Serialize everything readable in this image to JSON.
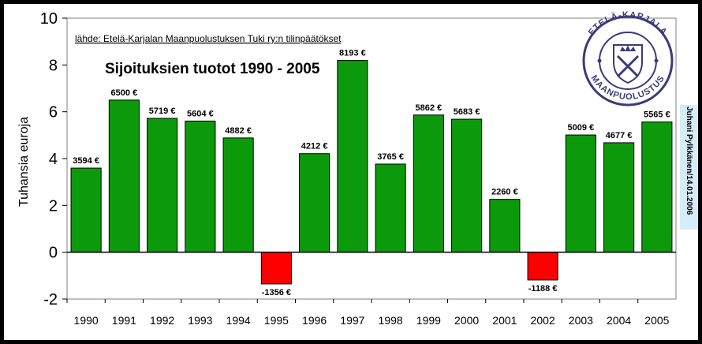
{
  "chart_data": {
    "type": "bar",
    "title": "Sijoituksien tuotot 1990 - 2005",
    "source": "lähde: Etelä-Karjalan Maanpuolustuksen Tuki ry:n tilinpäätökset",
    "author": "Juhani Pylkkänen/14.01.2006",
    "xlabel": "",
    "ylabel": "Tuhansia euroja",
    "ylim": [
      -2,
      10
    ],
    "yticks": [
      -2,
      0,
      2,
      4,
      6,
      8,
      10
    ],
    "grid": false,
    "categories": [
      "1990",
      "1991",
      "1992",
      "1993",
      "1994",
      "1995",
      "1996",
      "1997",
      "1998",
      "1999",
      "2000",
      "2001",
      "2002",
      "2003",
      "2004",
      "2005"
    ],
    "values": [
      3.594,
      6.5,
      5.719,
      5.604,
      4.882,
      -1.356,
      4.212,
      8.193,
      3.765,
      5.862,
      5.683,
      2.26,
      -1.188,
      5.009,
      4.677,
      5.565
    ],
    "data_labels": [
      "3594 €",
      "6500 €",
      "5719 €",
      "5604 €",
      "4882 €",
      "-1356 €",
      "4212 €",
      "8193 €",
      "3765 €",
      "5862 €",
      "5683 €",
      "2260 €",
      "-1188 €",
      "5009 €",
      "4677 €",
      "5565 €"
    ],
    "colors": {
      "positive": "#0c9a0c",
      "negative": "#ff0000",
      "plot_background": "#ffffff",
      "side_band": "#d6ecf8"
    }
  },
  "logo": {
    "text_top": "ETELÄ-KARJALA",
    "text_bottom": "MAANPUOLUSTUS",
    "color": "#3b3b7a"
  }
}
